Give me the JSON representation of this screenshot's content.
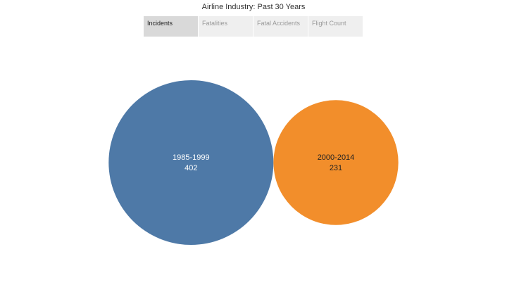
{
  "title": "Airline Industry: Past 30 Years",
  "tabs": [
    {
      "label": "Incidents",
      "active": true
    },
    {
      "label": "Fatalities",
      "active": false
    },
    {
      "label": "Fatal Accidents",
      "active": false
    },
    {
      "label": "Flight Count",
      "active": false
    }
  ],
  "chart_data": {
    "type": "bubble",
    "measure": "Incidents",
    "series": [
      {
        "name": "1985-1999",
        "value": 402,
        "color": "#4e79a7",
        "label_color": "#ffffff"
      },
      {
        "name": "2000-2014",
        "value": 231,
        "color": "#f28e2b",
        "label_color": "#222222"
      }
    ],
    "legend": "none",
    "grid": false
  }
}
